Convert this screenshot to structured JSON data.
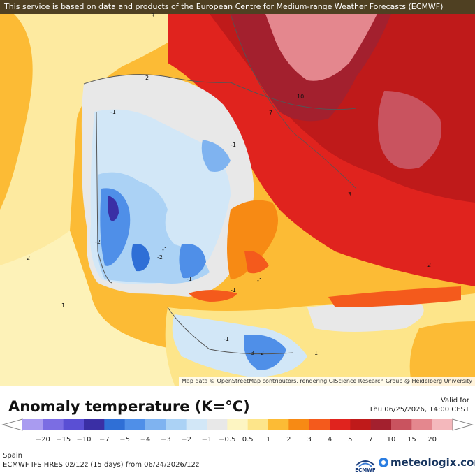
{
  "banner": {
    "text": "This service is based on data and products of the European Centre for Medium-range Weather Forecasts (ECMWF)"
  },
  "map": {
    "attribution": "Map data © OpenStreetMap contributors, rendering GIScience Research Group @ Heidelberg University",
    "contour_labels": [
      "3",
      "2",
      "10",
      "7",
      "-1",
      "-1",
      "-2",
      "-1",
      "-2",
      "-1",
      "-1",
      "-1",
      "2",
      "3",
      "2",
      "1",
      "-1",
      "-3",
      "-2",
      "1"
    ]
  },
  "legend": {
    "title": "Anomaly temperature (K=°C)",
    "valid_label": "Valid for",
    "valid_time": "Thu 06/25/2026, 14:00 CEST",
    "tick_labels": [
      "−20",
      "−15",
      "−10",
      "−7",
      "−5",
      "−4",
      "−3",
      "−2",
      "−1",
      "−0.5",
      "0.5",
      "1",
      "2",
      "3",
      "4",
      "5",
      "7",
      "10",
      "15",
      "20"
    ],
    "colors": [
      "#a99bf0",
      "#7b6de3",
      "#5a4fd4",
      "#3a2fa5",
      "#2f6fd6",
      "#4f8fe8",
      "#7fb3f0",
      "#abd2f5",
      "#d2e7f7",
      "#e8e8e8",
      "#fdf5c2",
      "#fde58a",
      "#fcbb35",
      "#f78a14",
      "#f45a1c",
      "#e0231e",
      "#bf1a1a",
      "#a3202e",
      "#c9535f",
      "#e4878e",
      "#f4b8bc"
    ]
  },
  "footer": {
    "region": "Spain",
    "model": "ECMWF IFS HRES 0z/12z (15 days) from  06/24/2026/12z",
    "ecmwf_label": "ECMWF",
    "brand": "meteologix.com"
  }
}
